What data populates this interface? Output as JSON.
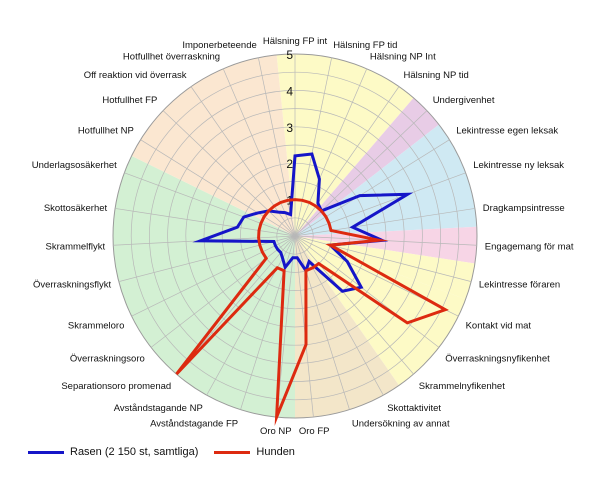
{
  "chart_data": {
    "type": "radar",
    "rmax": 5,
    "ticks": [
      "1",
      "2",
      "3",
      "4",
      "5"
    ],
    "categories": [
      "Hälsning FP int",
      "Hälsning FP tid",
      "Hälsning NP Int",
      "Hälsning NP tid",
      "Undergivenhet",
      "Lekintresse egen leksak",
      "Lekintresse ny leksak",
      "Dragkampsintresse",
      "Engagemang för mat",
      "Lekintresse föraren",
      "Kontakt vid mat",
      "Överraskningsnyfikenhet",
      "Skrammelnyfikenhet",
      "Skottaktivitet",
      "Undersökning av annat",
      "Oro FP",
      "Oro NP",
      "Avståndstagande FP",
      "Avståndstagande NP",
      "Separationsoro promenad",
      "Överraskningsoro",
      "Skrammeloro",
      "Överraskningsflykt",
      "Skrammelflykt",
      "Skottosäkerhet",
      "Underlagsosäkerhet",
      "Hotfullhet NP",
      "Hotfullhet FP",
      "Off reaktion vid överrask",
      "Hotfullhet överraskning",
      "Imponerbeteende"
    ],
    "sectors": [
      {
        "from": 0,
        "to": 3,
        "color": "#fdfac6"
      },
      {
        "from": 4,
        "to": 4,
        "color": "#e8cce6"
      },
      {
        "from": 5,
        "to": 7,
        "color": "#cfe9f3"
      },
      {
        "from": 8,
        "to": 8,
        "color": "#f7d5e6"
      },
      {
        "from": 9,
        "to": 9,
        "color": "#fdfac6"
      },
      {
        "from": 10,
        "to": 12,
        "color": "#fdfac6"
      },
      {
        "from": 13,
        "to": 15,
        "color": "#f3e6c9"
      },
      {
        "from": 16,
        "to": 25,
        "color": "#d3f0d3"
      },
      {
        "from": 26,
        "to": 30,
        "color": "#fbe7d1"
      }
    ],
    "series": [
      {
        "name": "Rasen (2 150 st, samtliga)",
        "color": "#1515c8",
        "values": [
          2.2,
          2.3,
          1.7,
          1.1,
          1.0,
          2.1,
          3.3,
          1.6,
          2.4,
          1.0,
          1.6,
          2.3,
          2.0,
          0.8,
          1.0,
          0.6,
          0.6,
          0.9,
          0.7,
          0.6,
          0.6,
          0.6,
          0.6,
          2.6,
          1.6,
          1.5,
          1.2,
          1.0,
          0.8,
          0.7,
          0.6
        ]
      },
      {
        "name": "Hunden",
        "color": "#dd2a10",
        "values": [
          1.0,
          1.0,
          1.0,
          1.0,
          1.0,
          1.0,
          1.0,
          1.0,
          2.3,
          1.0,
          4.6,
          3.9,
          1.0,
          1.0,
          1.0,
          3.0,
          5.0,
          1.0,
          1.0,
          5.0,
          1.0,
          1.0,
          1.0,
          1.0,
          1.0,
          1.0,
          1.0,
          1.0,
          1.0,
          1.0,
          1.0
        ]
      }
    ]
  }
}
